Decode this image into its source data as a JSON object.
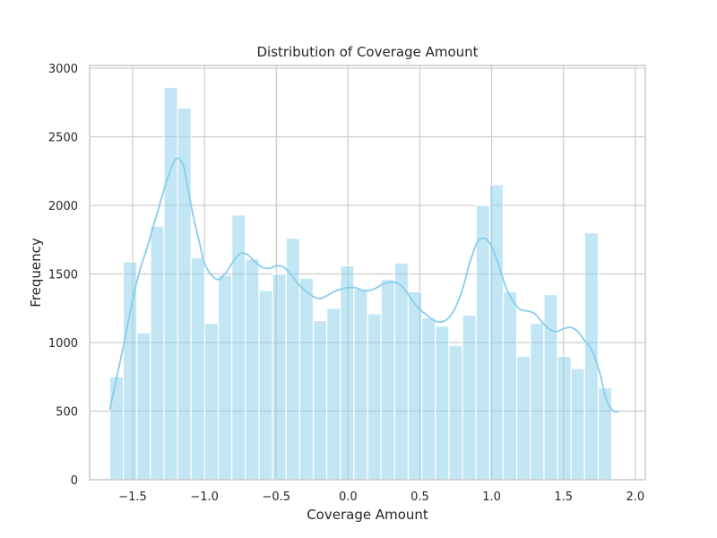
{
  "chart_data": {
    "type": "bar",
    "title": "Distribution of Coverage Amount",
    "xlabel": "Coverage Amount",
    "ylabel": "Frequency",
    "xlim": [
      -1.8,
      2.07
    ],
    "ylim": [
      0,
      3020
    ],
    "xticks": [
      -1.5,
      -1.0,
      -0.5,
      0.0,
      0.5,
      1.0,
      1.5,
      2.0
    ],
    "xtick_labels": [
      "−1.5",
      "−1.0",
      "−0.5",
      "0.0",
      "0.5",
      "1.0",
      "1.5",
      "2.0"
    ],
    "yticks": [
      0,
      500,
      1000,
      1500,
      2000,
      2500,
      3000
    ],
    "ytick_labels": [
      "0",
      "500",
      "1000",
      "1500",
      "2000",
      "2500",
      "3000"
    ],
    "grid": true,
    "colors": {
      "bar": "#87ceeb",
      "kde": "#87ceeb",
      "grid": "#cccccc",
      "spine": "#cccccc"
    },
    "bins": {
      "start": -1.66,
      "width": 0.0945,
      "counts": [
        750,
        1590,
        1070,
        1850,
        2860,
        2710,
        1620,
        1140,
        1490,
        1930,
        1610,
        1380,
        1500,
        1760,
        1470,
        1160,
        1250,
        1560,
        1390,
        1210,
        1460,
        1580,
        1370,
        1180,
        1120,
        980,
        1200,
        2000,
        2150,
        1370,
        900,
        1140,
        1350,
        900,
        810,
        1800,
        670
      ]
    },
    "kde": {
      "x": [
        -1.66,
        -1.6,
        -1.55,
        -1.5,
        -1.45,
        -1.4,
        -1.35,
        -1.3,
        -1.25,
        -1.2,
        -1.15,
        -1.12,
        -1.08,
        -1.04,
        -1.0,
        -0.95,
        -0.9,
        -0.85,
        -0.8,
        -0.75,
        -0.7,
        -0.65,
        -0.6,
        -0.55,
        -0.5,
        -0.45,
        -0.4,
        -0.35,
        -0.3,
        -0.25,
        -0.2,
        -0.15,
        -0.1,
        -0.05,
        0.0,
        0.05,
        0.1,
        0.15,
        0.2,
        0.25,
        0.3,
        0.35,
        0.4,
        0.45,
        0.5,
        0.55,
        0.6,
        0.65,
        0.7,
        0.75,
        0.8,
        0.85,
        0.9,
        0.95,
        1.0,
        1.05,
        1.1,
        1.15,
        1.2,
        1.25,
        1.3,
        1.35,
        1.4,
        1.45,
        1.5,
        1.55,
        1.6,
        1.65,
        1.7,
        1.75,
        1.8,
        1.85,
        1.89
      ],
      "y": [
        510,
        800,
        1050,
        1310,
        1530,
        1690,
        1870,
        2050,
        2220,
        2340,
        2300,
        2150,
        1930,
        1750,
        1580,
        1490,
        1460,
        1510,
        1590,
        1650,
        1640,
        1590,
        1550,
        1540,
        1560,
        1550,
        1500,
        1430,
        1380,
        1340,
        1320,
        1340,
        1370,
        1390,
        1400,
        1400,
        1380,
        1380,
        1400,
        1430,
        1440,
        1430,
        1380,
        1300,
        1240,
        1200,
        1160,
        1150,
        1180,
        1260,
        1400,
        1590,
        1730,
        1760,
        1700,
        1560,
        1400,
        1300,
        1240,
        1230,
        1210,
        1150,
        1100,
        1080,
        1100,
        1110,
        1080,
        1010,
        940,
        790,
        580,
        500,
        500
      ]
    }
  }
}
